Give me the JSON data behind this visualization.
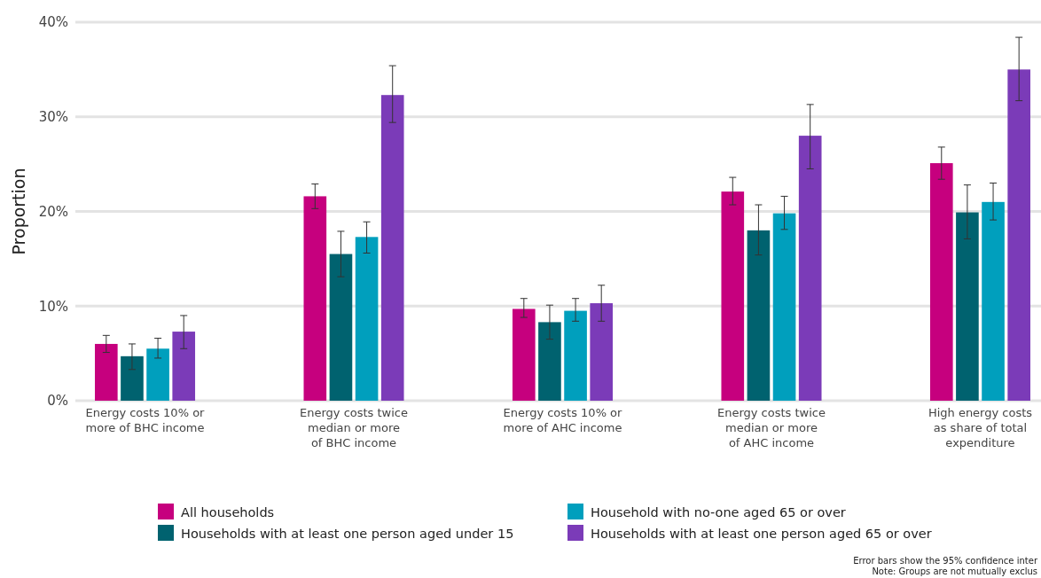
{
  "chart_data": {
    "type": "bar",
    "ylabel": "Proportion",
    "categories": [
      "Energy costs 10% or\nmore of BHC income",
      "Energy costs twice\nmedian or more\nof BHC income",
      "Energy costs 10% or\nmore of AHC income",
      "Energy costs twice\nmedian or more\nof AHC income",
      "High energy costs\nas share of total\nexpenditure"
    ],
    "series": [
      {
        "name": "All households",
        "color": "#c6007e",
        "values": [
          6.0,
          21.6,
          9.7,
          22.1,
          25.1
        ],
        "errors": [
          [
            5.1,
            6.9
          ],
          [
            20.3,
            22.9
          ],
          [
            8.8,
            10.8
          ],
          [
            20.7,
            23.6
          ],
          [
            23.4,
            26.8
          ]
        ]
      },
      {
        "name": "Households with at least one person aged under 15",
        "color": "#00626f",
        "values": [
          4.7,
          15.5,
          8.3,
          18.0,
          19.9
        ],
        "errors": [
          [
            3.3,
            6.0
          ],
          [
            13.1,
            17.9
          ],
          [
            6.5,
            10.1
          ],
          [
            15.4,
            20.7
          ],
          [
            17.1,
            22.8
          ]
        ]
      },
      {
        "name": "Household with no-one aged 65 or over",
        "color": "#009fbd",
        "values": [
          5.5,
          17.3,
          9.5,
          19.8,
          21.0
        ],
        "errors": [
          [
            4.5,
            6.6
          ],
          [
            15.6,
            18.9
          ],
          [
            8.4,
            10.8
          ],
          [
            18.1,
            21.6
          ],
          [
            19.1,
            23.0
          ]
        ]
      },
      {
        "name": "Households with at least one person aged 65 or over",
        "color": "#7b3bb8",
        "values": [
          7.3,
          32.3,
          10.3,
          28.0,
          35.0
        ],
        "errors": [
          [
            5.5,
            9.0
          ],
          [
            29.4,
            35.4
          ],
          [
            8.4,
            12.2
          ],
          [
            24.5,
            31.3
          ],
          [
            31.7,
            38.4
          ]
        ]
      }
    ],
    "ylim": [
      0,
      40
    ],
    "yticks": [
      {
        "value": 0,
        "label": "0%"
      },
      {
        "value": 10,
        "label": "10%"
      },
      {
        "value": 20,
        "label": "20%"
      },
      {
        "value": 30,
        "label": "30%"
      },
      {
        "value": 40,
        "label": "40%"
      }
    ],
    "grid": "y",
    "legend": "bottom",
    "annotations": [
      "Error bars show the 95% confidence inter",
      "Note: Groups are not mutually exclus"
    ]
  }
}
